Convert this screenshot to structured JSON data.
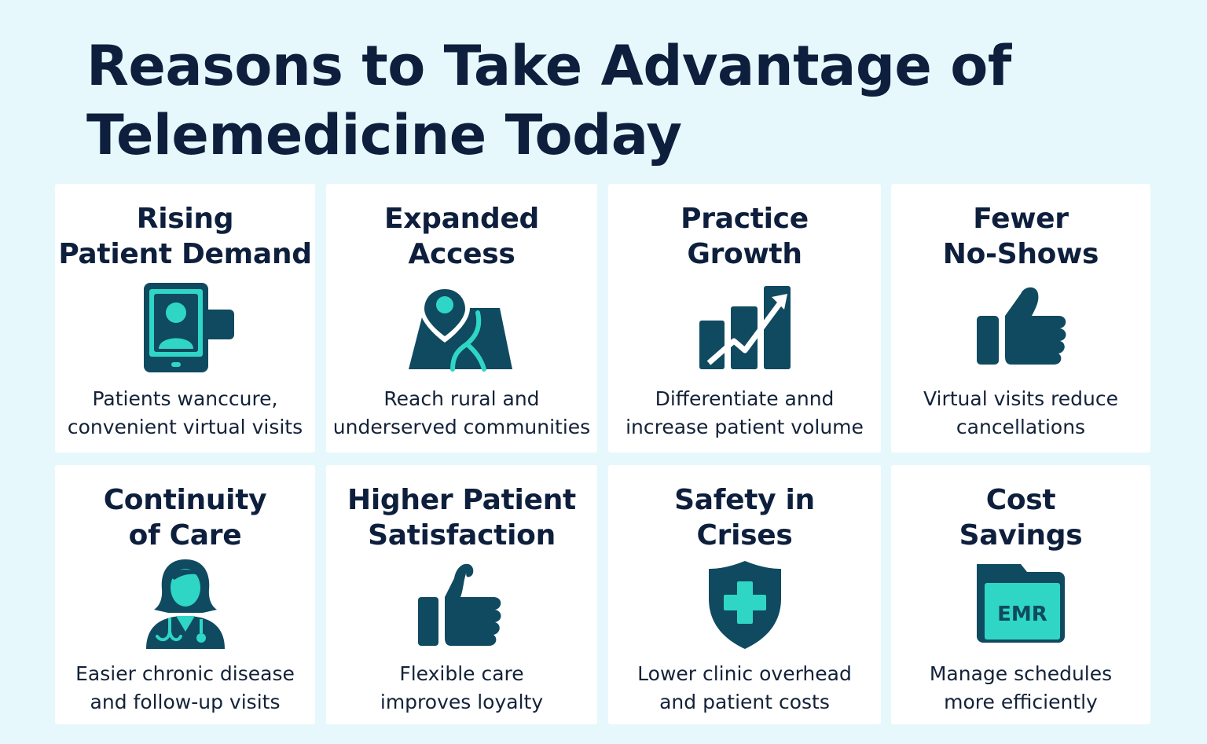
{
  "title": "Reasons to Take Advantage of\nTelemedicine Today",
  "colors": {
    "background": "#e6f8fc",
    "icon_dark": "#0f4a60",
    "icon_accent": "#2fd6c6",
    "title": "#0d1f3c"
  },
  "cards": [
    {
      "title": "Rising\nPatient Demand",
      "icon": "tablet-video-call-icon",
      "description": "Patients wanccure,\nconvenient virtual visits"
    },
    {
      "title": "Expanded\nAccess",
      "icon": "map-pin-icon",
      "description": "Reach rural and\nunderserved communities"
    },
    {
      "title": "Practice\nGrowth",
      "icon": "growth-chart-icon",
      "description": "Differentiate annd\nincrease patient volume"
    },
    {
      "title": "Fewer\nNo-Shows",
      "icon": "thumbs-up-icon",
      "description": "Virtual visits reduce\ncancellations"
    },
    {
      "title": "Continuity\nof Care",
      "icon": "doctor-icon",
      "description": "Easier chronic disease\nand follow-up visits"
    },
    {
      "title": "Higher Patient\nSatisfaction",
      "icon": "thumbs-up-icon",
      "description": "Flexible care\nimproves loyalty"
    },
    {
      "title": "Safety in\nCrises",
      "icon": "shield-cross-icon",
      "description": "Lower clinic overhead\nand patient costs"
    },
    {
      "title": "Cost\nSavings",
      "icon": "emr-folder-icon",
      "emr_label": "EMR",
      "description": "Manage schedules\nmore efficiently"
    }
  ]
}
